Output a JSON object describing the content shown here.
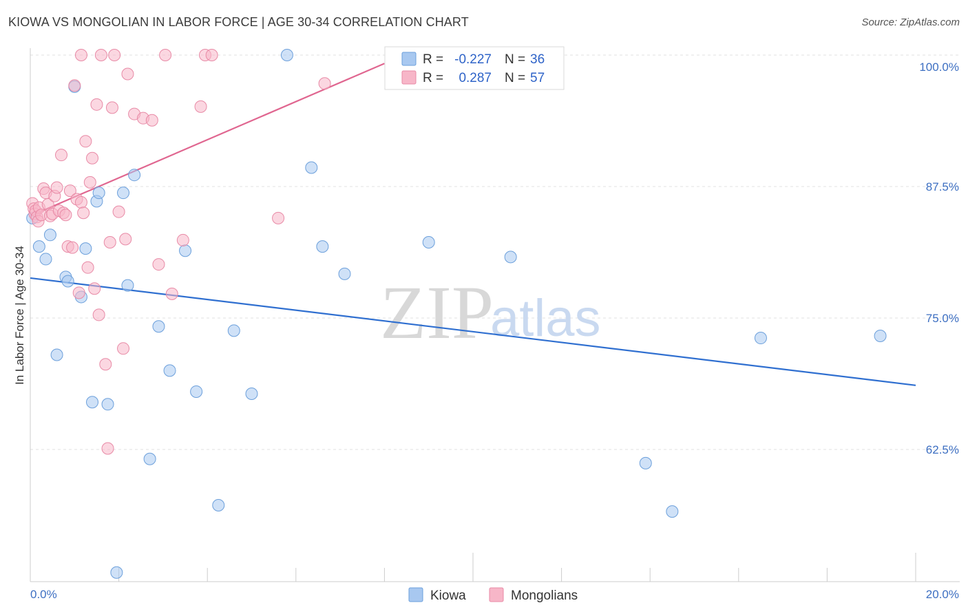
{
  "chart_data": {
    "type": "scatter",
    "title": "KIOWA VS MONGOLIAN IN LABOR FORCE | AGE 30-34 CORRELATION CHART",
    "source": "Source: ZipAtlas.com",
    "xlabel": "",
    "ylabel": "In Labor Force | Age 30-34",
    "xlim": [
      0.0,
      20.0
    ],
    "ylim": [
      50.0,
      101.0
    ],
    "x_tick_labels": [
      "0.0%",
      "20.0%"
    ],
    "y_ticks": [
      62.5,
      75.0,
      87.5,
      100.0
    ],
    "y_tick_labels": [
      "62.5%",
      "75.0%",
      "87.5%",
      "100.0%"
    ],
    "watermark": {
      "zip": "ZIP",
      "atlas": "atlas"
    },
    "legend": {
      "r_label": "R =",
      "n_label": "N =",
      "entries": [
        {
          "name": "Kiowa",
          "r": "-0.227",
          "n": "36",
          "color": "#a8c8f0"
        },
        {
          "name": "Mongolians",
          "r": "0.287",
          "n": "57",
          "color": "#f7b6c8"
        }
      ]
    },
    "series": [
      {
        "name": "Kiowa",
        "color": "#a8c8f0",
        "stroke": "#6b9fdb",
        "trend": {
          "x": [
            0.0,
            20.0
          ],
          "y": [
            78.8,
            68.6
          ],
          "color": "#2f6fd0"
        },
        "points": [
          [
            0.05,
            84.5
          ],
          [
            0.2,
            81.8
          ],
          [
            0.35,
            80.6
          ],
          [
            0.45,
            82.9
          ],
          [
            0.6,
            71.5
          ],
          [
            0.8,
            78.9
          ],
          [
            0.85,
            78.5
          ],
          [
            1.0,
            97.0
          ],
          [
            1.15,
            77.0
          ],
          [
            1.25,
            81.6
          ],
          [
            1.4,
            67.0
          ],
          [
            1.5,
            86.1
          ],
          [
            1.55,
            86.9
          ],
          [
            1.75,
            66.8
          ],
          [
            1.95,
            50.8
          ],
          [
            2.1,
            86.9
          ],
          [
            2.2,
            78.1
          ],
          [
            2.35,
            88.6
          ],
          [
            2.7,
            61.6
          ],
          [
            2.9,
            74.2
          ],
          [
            3.15,
            70.0
          ],
          [
            3.5,
            81.4
          ],
          [
            3.75,
            68.0
          ],
          [
            4.25,
            57.2
          ],
          [
            4.6,
            73.8
          ],
          [
            5.0,
            67.8
          ],
          [
            5.8,
            100.0
          ],
          [
            6.35,
            89.3
          ],
          [
            6.6,
            81.8
          ],
          [
            7.1,
            79.2
          ],
          [
            9.0,
            82.2
          ],
          [
            10.85,
            80.8
          ],
          [
            13.9,
            61.2
          ],
          [
            14.5,
            56.6
          ],
          [
            16.5,
            73.1
          ],
          [
            19.2,
            73.3
          ]
        ]
      },
      {
        "name": "Mongolians",
        "color": "#f7b6c8",
        "stroke": "#e88aa6",
        "trend": {
          "x": [
            0.0,
            8.0
          ],
          "y": [
            84.7,
            99.2
          ],
          "color": "#e06690"
        },
        "points": [
          [
            0.05,
            85.9
          ],
          [
            0.08,
            85.4
          ],
          [
            0.1,
            84.9
          ],
          [
            0.12,
            85.2
          ],
          [
            0.15,
            84.6
          ],
          [
            0.18,
            84.2
          ],
          [
            0.2,
            85.5
          ],
          [
            0.25,
            84.8
          ],
          [
            0.3,
            87.3
          ],
          [
            0.35,
            86.9
          ],
          [
            0.4,
            85.8
          ],
          [
            0.45,
            84.7
          ],
          [
            0.5,
            84.9
          ],
          [
            0.55,
            86.6
          ],
          [
            0.6,
            87.4
          ],
          [
            0.65,
            85.2
          ],
          [
            0.7,
            90.5
          ],
          [
            0.75,
            85.0
          ],
          [
            0.8,
            84.8
          ],
          [
            0.85,
            81.8
          ],
          [
            0.9,
            87.1
          ],
          [
            0.95,
            81.7
          ],
          [
            1.0,
            97.1
          ],
          [
            1.05,
            86.3
          ],
          [
            1.1,
            77.4
          ],
          [
            1.15,
            86.0
          ],
          [
            1.2,
            85.0
          ],
          [
            1.25,
            91.8
          ],
          [
            1.3,
            79.8
          ],
          [
            1.35,
            87.9
          ],
          [
            1.4,
            90.2
          ],
          [
            1.45,
            77.8
          ],
          [
            1.5,
            95.3
          ],
          [
            1.55,
            75.3
          ],
          [
            1.6,
            100.0
          ],
          [
            1.7,
            70.6
          ],
          [
            1.75,
            62.6
          ],
          [
            1.8,
            82.2
          ],
          [
            1.85,
            95.0
          ],
          [
            1.9,
            100.0
          ],
          [
            2.0,
            85.1
          ],
          [
            2.1,
            72.1
          ],
          [
            2.15,
            82.5
          ],
          [
            2.2,
            98.2
          ],
          [
            2.35,
            94.4
          ],
          [
            2.55,
            94.0
          ],
          [
            2.75,
            93.8
          ],
          [
            2.9,
            80.1
          ],
          [
            3.05,
            100.0
          ],
          [
            3.2,
            77.3
          ],
          [
            3.45,
            82.4
          ],
          [
            3.85,
            95.1
          ],
          [
            3.95,
            100.0
          ],
          [
            4.1,
            100.0
          ],
          [
            5.6,
            84.5
          ],
          [
            6.65,
            97.3
          ],
          [
            1.15,
            100.0
          ]
        ]
      }
    ]
  }
}
